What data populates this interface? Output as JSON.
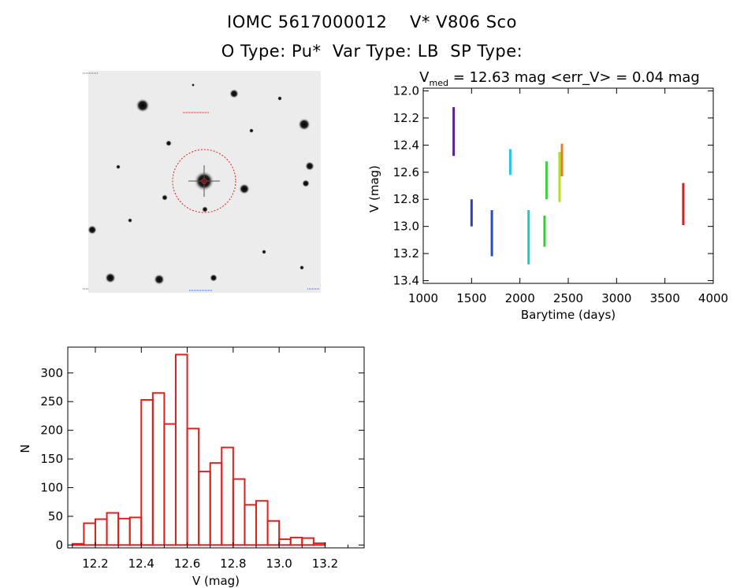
{
  "header": {
    "line1": "IOMC 5617000012    V* V806 Sco",
    "line2": "O Type: Pu*  Var Type: LB  SP Type:"
  },
  "colors": {
    "hist_bar": "#dd2020",
    "aperture": "#dd2020",
    "series": [
      "#5a2090",
      "#3040c0",
      "#2050c8",
      "#20c8e0",
      "#20c8c8",
      "#30d030",
      "#40d040",
      "#b0e020",
      "#e08020",
      "#d02020"
    ]
  },
  "chart_data": [
    {
      "type": "scatter",
      "title": "V_med = 12.63 mag <err_V> = 0.04 mag",
      "title_parts": {
        "v": "V",
        "sub": "med",
        "rest": " = 12.63 mag <err_V> = 0.04 mag"
      },
      "xlabel": "Barytime (days)",
      "ylabel": "V (mag)",
      "xlim": [
        1000,
        4000
      ],
      "ylim": [
        13.42,
        11.98
      ],
      "y_inverted": true,
      "xticks": [
        1000,
        1500,
        2000,
        2500,
        3000,
        3500,
        4000
      ],
      "yticks": [
        "12.0",
        "12.2",
        "12.4",
        "12.6",
        "12.8",
        "13.0",
        "13.2",
        "13.4"
      ],
      "series": [
        {
          "x": 1315,
          "y_range": [
            12.12,
            12.48
          ],
          "color_index": 0
        },
        {
          "x": 1500,
          "y_range": [
            12.8,
            13.0
          ],
          "color_index": 1
        },
        {
          "x": 1710,
          "y_range": [
            12.88,
            13.22
          ],
          "color_index": 2
        },
        {
          "x": 1900,
          "y_range": [
            12.43,
            12.62
          ],
          "color_index": 3
        },
        {
          "x": 2090,
          "y_range": [
            12.88,
            13.28
          ],
          "color_index": 4
        },
        {
          "x": 2255,
          "y_range": [
            12.92,
            13.15
          ],
          "color_index": 5
        },
        {
          "x": 2275,
          "y_range": [
            12.52,
            12.8
          ],
          "color_index": 6
        },
        {
          "x": 2410,
          "y_range": [
            12.45,
            12.82
          ],
          "color_index": 7
        },
        {
          "x": 2435,
          "y_range": [
            12.39,
            12.63
          ],
          "color_index": 8
        },
        {
          "x": 3690,
          "y_range": [
            12.68,
            12.99
          ],
          "color_index": 9
        }
      ]
    },
    {
      "type": "bar",
      "xlabel": "V (mag)",
      "ylabel": "N",
      "xlim": [
        12.08,
        13.37
      ],
      "ylim": [
        -5,
        345
      ],
      "xticks": [
        "12.2",
        "12.4",
        "12.6",
        "12.8",
        "13.0",
        "13.2"
      ],
      "yticks": [
        "0",
        "50",
        "100",
        "150",
        "200",
        "250",
        "300"
      ],
      "bin_width": 0.05,
      "bin_starts": [
        12.1,
        12.15,
        12.2,
        12.25,
        12.3,
        12.35,
        12.4,
        12.45,
        12.5,
        12.55,
        12.6,
        12.65,
        12.7,
        12.75,
        12.8,
        12.85,
        12.9,
        12.95,
        13.0,
        13.05,
        13.1,
        13.15,
        13.2,
        13.25
      ],
      "values": [
        2,
        38,
        45,
        56,
        46,
        48,
        253,
        265,
        211,
        332,
        203,
        128,
        143,
        170,
        115,
        70,
        77,
        42,
        10,
        13,
        12,
        3,
        0,
        0
      ]
    }
  ]
}
